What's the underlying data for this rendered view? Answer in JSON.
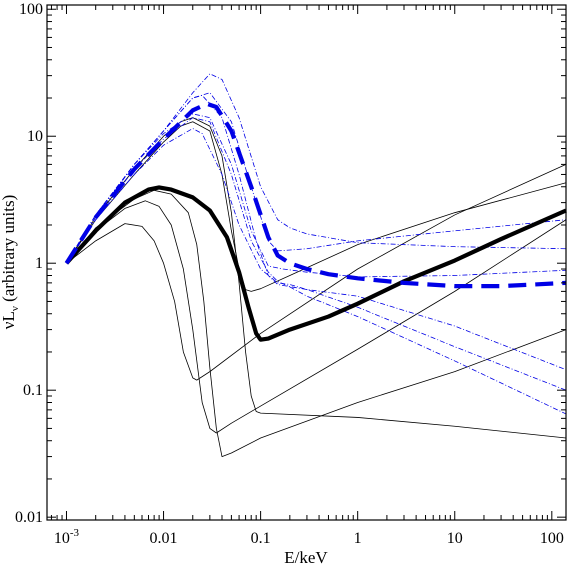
{
  "chart_data": {
    "type": "line",
    "xscale": "log",
    "yscale": "log",
    "xlim": [
      0.00063,
      140
    ],
    "ylim": [
      0.0095,
      108
    ],
    "xlabel": "E/keV",
    "ylabel_main": "νL",
    "ylabel_sub": "ν",
    "ylabel_rest": " (arbitrary units)",
    "x_ticks": [
      {
        "value": 0.001,
        "label": "10",
        "sup": "-3"
      },
      {
        "value": 0.01,
        "label": "0.01",
        "sup": ""
      },
      {
        "value": 0.1,
        "label": "0.1",
        "sup": ""
      },
      {
        "value": 1,
        "label": "1",
        "sup": ""
      },
      {
        "value": 10,
        "label": "10",
        "sup": ""
      },
      {
        "value": 100,
        "label": "100",
        "sup": ""
      }
    ],
    "y_ticks": [
      {
        "value": 0.01,
        "label": "0.01"
      },
      {
        "value": 0.1,
        "label": "0.1"
      },
      {
        "value": 1,
        "label": "1"
      },
      {
        "value": 10,
        "label": "10"
      },
      {
        "value": 100,
        "label": "100"
      }
    ],
    "grid": false,
    "colors": {
      "black": "#000000",
      "blue": "#0000e6"
    },
    "series": [
      {
        "style": "thick-black",
        "points": [
          [
            0.001,
            1
          ],
          [
            0.002,
            1.8
          ],
          [
            0.004,
            3
          ],
          [
            0.007,
            3.8
          ],
          [
            0.009,
            3.95
          ],
          [
            0.012,
            3.8
          ],
          [
            0.02,
            3.3
          ],
          [
            0.03,
            2.6
          ],
          [
            0.045,
            1.6
          ],
          [
            0.06,
            0.85
          ],
          [
            0.075,
            0.45
          ],
          [
            0.09,
            0.28
          ],
          [
            0.1,
            0.25
          ],
          [
            0.12,
            0.255
          ],
          [
            0.2,
            0.3
          ],
          [
            0.5,
            0.38
          ],
          [
            1,
            0.48
          ],
          [
            3,
            0.72
          ],
          [
            10,
            1.05
          ],
          [
            30,
            1.55
          ],
          [
            140,
            2.6
          ]
        ]
      },
      {
        "style": "thick-blue-dashed",
        "points": [
          [
            0.001,
            1
          ],
          [
            0.002,
            2.3
          ],
          [
            0.005,
            5.5
          ],
          [
            0.01,
            9.5
          ],
          [
            0.02,
            16
          ],
          [
            0.028,
            18
          ],
          [
            0.035,
            17
          ],
          [
            0.05,
            11
          ],
          [
            0.08,
            4
          ],
          [
            0.12,
            1.6
          ],
          [
            0.15,
            1.15
          ],
          [
            0.2,
            1
          ],
          [
            0.3,
            0.9
          ],
          [
            0.5,
            0.82
          ],
          [
            1,
            0.76
          ],
          [
            3,
            0.7
          ],
          [
            10,
            0.66
          ],
          [
            30,
            0.66
          ],
          [
            140,
            0.7
          ]
        ]
      },
      {
        "style": "thin-black",
        "points": [
          [
            0.001,
            1
          ],
          [
            0.002,
            1.5
          ],
          [
            0.004,
            2.05
          ],
          [
            0.006,
            1.95
          ],
          [
            0.008,
            1.5
          ],
          [
            0.01,
            1
          ],
          [
            0.013,
            0.5
          ],
          [
            0.016,
            0.2
          ],
          [
            0.02,
            0.125
          ],
          [
            0.022,
            0.12
          ],
          [
            0.03,
            0.14
          ],
          [
            0.1,
            0.28
          ],
          [
            1,
            0.9
          ],
          [
            10,
            2.4
          ],
          [
            140,
            6
          ]
        ]
      },
      {
        "style": "thin-black",
        "points": [
          [
            0.001,
            1
          ],
          [
            0.002,
            1.8
          ],
          [
            0.004,
            2.7
          ],
          [
            0.0065,
            3.1
          ],
          [
            0.009,
            2.8
          ],
          [
            0.012,
            2.0
          ],
          [
            0.016,
            0.9
          ],
          [
            0.02,
            0.3
          ],
          [
            0.025,
            0.08
          ],
          [
            0.03,
            0.05
          ],
          [
            0.035,
            0.046
          ],
          [
            0.05,
            0.055
          ],
          [
            0.1,
            0.075
          ],
          [
            1,
            0.21
          ],
          [
            10,
            0.6
          ],
          [
            140,
            2.2
          ]
        ]
      },
      {
        "style": "thin-black",
        "points": [
          [
            0.001,
            1
          ],
          [
            0.002,
            1.9
          ],
          [
            0.005,
            3.2
          ],
          [
            0.008,
            3.75
          ],
          [
            0.012,
            3.5
          ],
          [
            0.018,
            2.5
          ],
          [
            0.022,
            1.4
          ],
          [
            0.026,
            0.5
          ],
          [
            0.03,
            0.15
          ],
          [
            0.035,
            0.05
          ],
          [
            0.04,
            0.03
          ],
          [
            0.05,
            0.032
          ],
          [
            0.1,
            0.042
          ],
          [
            1,
            0.08
          ],
          [
            10,
            0.14
          ],
          [
            140,
            0.3
          ]
        ]
      },
      {
        "style": "thin-black",
        "points": [
          [
            0.001,
            1
          ],
          [
            0.002,
            2.2
          ],
          [
            0.005,
            5
          ],
          [
            0.01,
            9
          ],
          [
            0.015,
            12
          ],
          [
            0.02,
            13
          ],
          [
            0.03,
            11
          ],
          [
            0.04,
            5
          ],
          [
            0.05,
            1.8
          ],
          [
            0.06,
            0.9
          ],
          [
            0.07,
            0.62
          ],
          [
            0.08,
            0.6
          ],
          [
            0.1,
            0.63
          ],
          [
            0.2,
            0.8
          ],
          [
            1,
            1.4
          ],
          [
            10,
            2.5
          ],
          [
            140,
            4.3
          ]
        ]
      },
      {
        "style": "thin-black",
        "points": [
          [
            0.001,
            1
          ],
          [
            0.002,
            2.3
          ],
          [
            0.005,
            5.5
          ],
          [
            0.01,
            10
          ],
          [
            0.015,
            13
          ],
          [
            0.02,
            14
          ],
          [
            0.03,
            12
          ],
          [
            0.04,
            7
          ],
          [
            0.05,
            2.5
          ],
          [
            0.06,
            0.7
          ],
          [
            0.07,
            0.2
          ],
          [
            0.08,
            0.09
          ],
          [
            0.09,
            0.068
          ],
          [
            0.1,
            0.066
          ],
          [
            1,
            0.061
          ],
          [
            10,
            0.052
          ],
          [
            140,
            0.042
          ]
        ]
      },
      {
        "style": "thin-blue-dashed",
        "points": [
          [
            0.001,
            1
          ],
          [
            0.002,
            2.4
          ],
          [
            0.005,
            6
          ],
          [
            0.01,
            11
          ],
          [
            0.02,
            22
          ],
          [
            0.03,
            31
          ],
          [
            0.04,
            28
          ],
          [
            0.06,
            14
          ],
          [
            0.1,
            4
          ],
          [
            0.15,
            2.2
          ],
          [
            0.2,
            1.9
          ],
          [
            0.3,
            1.7
          ],
          [
            1,
            1.45
          ],
          [
            10,
            1.35
          ],
          [
            140,
            1.3
          ]
        ]
      },
      {
        "style": "thin-blue-dashed",
        "points": [
          [
            0.001,
            1
          ],
          [
            0.002,
            2.4
          ],
          [
            0.005,
            6
          ],
          [
            0.01,
            11
          ],
          [
            0.02,
            20
          ],
          [
            0.03,
            22
          ],
          [
            0.05,
            13
          ],
          [
            0.08,
            4
          ],
          [
            0.12,
            1.5
          ],
          [
            0.15,
            1.25
          ],
          [
            0.3,
            1.3
          ],
          [
            1,
            1.5
          ],
          [
            10,
            1.8
          ],
          [
            140,
            2.2
          ]
        ]
      },
      {
        "style": "thin-blue-dashed",
        "points": [
          [
            0.001,
            1
          ],
          [
            0.002,
            2.4
          ],
          [
            0.005,
            6
          ],
          [
            0.01,
            10.5
          ],
          [
            0.02,
            15
          ],
          [
            0.03,
            14
          ],
          [
            0.05,
            6
          ],
          [
            0.08,
            1.8
          ],
          [
            0.12,
            0.95
          ],
          [
            0.17,
            0.9
          ],
          [
            0.3,
            0.85
          ],
          [
            1,
            0.78
          ],
          [
            10,
            0.8
          ],
          [
            140,
            0.88
          ]
        ]
      },
      {
        "style": "thin-blue-dashed",
        "points": [
          [
            0.001,
            1
          ],
          [
            0.002,
            2.2
          ],
          [
            0.005,
            5
          ],
          [
            0.01,
            8.5
          ],
          [
            0.02,
            11.5
          ],
          [
            0.025,
            10.5
          ],
          [
            0.04,
            5
          ],
          [
            0.06,
            2
          ],
          [
            0.1,
            0.9
          ],
          [
            0.15,
            0.7
          ],
          [
            0.2,
            0.68
          ],
          [
            0.3,
            0.62
          ],
          [
            1,
            0.45
          ],
          [
            10,
            0.22
          ],
          [
            140,
            0.1
          ]
        ]
      },
      {
        "style": "thin-blue-dashed",
        "points": [
          [
            0.001,
            1
          ],
          [
            0.002,
            2.2
          ],
          [
            0.005,
            5.5
          ],
          [
            0.01,
            9.5
          ],
          [
            0.02,
            14
          ],
          [
            0.03,
            13
          ],
          [
            0.05,
            5
          ],
          [
            0.08,
            1.5
          ],
          [
            0.12,
            0.85
          ],
          [
            0.15,
            0.72
          ],
          [
            0.2,
            0.65
          ],
          [
            0.3,
            0.55
          ],
          [
            1,
            0.38
          ],
          [
            10,
            0.17
          ],
          [
            140,
            0.065
          ]
        ]
      },
      {
        "style": "thin-blue-dashed",
        "points": [
          [
            0.001,
            1
          ],
          [
            0.002,
            2.3
          ],
          [
            0.005,
            6
          ],
          [
            0.01,
            11
          ],
          [
            0.02,
            20
          ],
          [
            0.025,
            21
          ],
          [
            0.04,
            14
          ],
          [
            0.06,
            5
          ],
          [
            0.09,
            1.5
          ],
          [
            0.12,
            0.8
          ],
          [
            0.15,
            0.68
          ],
          [
            0.3,
            0.62
          ],
          [
            1,
            0.55
          ],
          [
            10,
            0.32
          ],
          [
            140,
            0.145
          ]
        ]
      }
    ]
  }
}
